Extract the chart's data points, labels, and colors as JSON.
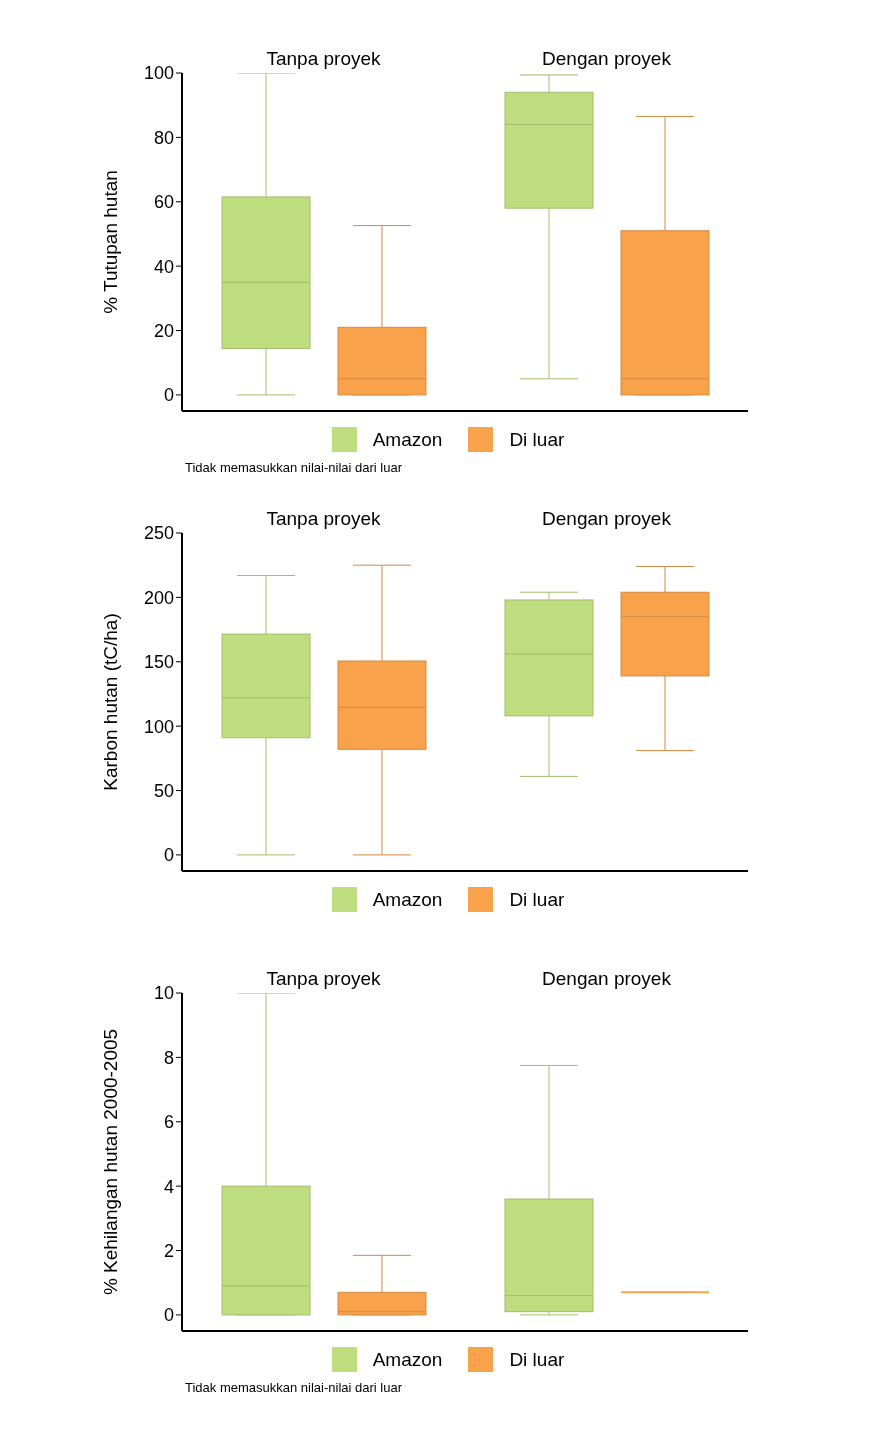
{
  "chart_data": [
    {
      "type": "box",
      "ylabel": "% Tutupan hutan",
      "categories": [
        "Tanpa proyek",
        "Dengan proyek"
      ],
      "ylim": [
        -5,
        100
      ],
      "yticks": [
        0,
        20,
        40,
        60,
        80,
        100
      ],
      "legend": "bottom",
      "annotations": [
        "Tidak memasukkan nilai-nilai dari luar"
      ],
      "series": [
        {
          "name": "Amazon",
          "color": "#bedd7f",
          "boxes": [
            {
              "low": 0,
              "q1": 14.4,
              "median": 35,
              "q3": 61.5,
              "high": 100
            },
            {
              "low": 5,
              "q1": 58,
              "median": 84,
              "q3": 94,
              "high": 99.4
            }
          ]
        },
        {
          "name": "Di luar",
          "color": "#f8a24c",
          "boxes": [
            {
              "low": 0,
              "q1": 0,
              "median": 5,
              "q3": 21,
              "high": 52.6
            },
            {
              "low": 0,
              "q1": 0,
              "median": 5,
              "q3": 51,
              "high": 86.5
            }
          ]
        }
      ]
    },
    {
      "type": "box",
      "ylabel": "Karbon hutan (tC/ha)",
      "categories": [
        "Tanpa proyek",
        "Dengan proyek"
      ],
      "ylim": [
        -12.5,
        250
      ],
      "yticks": [
        0,
        50,
        100,
        150,
        200,
        250
      ],
      "legend": "bottom",
      "series": [
        {
          "name": "Amazon",
          "color": "#bedd7f",
          "boxes": [
            {
              "low": 0,
              "q1": 91,
              "median": 122,
              "q3": 171.5,
              "high": 217
            },
            {
              "low": 61,
              "q1": 108,
              "median": 156,
              "q3": 198,
              "high": 204
            }
          ]
        },
        {
          "name": "Di luar",
          "color": "#f8a24c",
          "boxes": [
            {
              "low": 0,
              "q1": 82,
              "median": 114.6,
              "q3": 150.6,
              "high": 225
            },
            {
              "low": 81,
              "q1": 139,
              "median": 185,
              "q3": 204,
              "high": 224
            }
          ]
        }
      ]
    },
    {
      "type": "box",
      "ylabel": "% Kehilangan hutan 2000-2005",
      "categories": [
        "Tanpa proyek",
        "Dengan proyek"
      ],
      "ylim": [
        -0.5,
        10
      ],
      "yticks": [
        0,
        2,
        4,
        6,
        8,
        10
      ],
      "legend": "bottom",
      "annotations": [
        "Tidak memasukkan nilai-nilai dari luar"
      ],
      "series": [
        {
          "name": "Amazon",
          "color": "#bedd7f",
          "boxes": [
            {
              "low": 0,
              "q1": 0,
              "median": 0.9,
              "q3": 4,
              "high": 10
            },
            {
              "low": 0,
              "q1": 0.1,
              "median": 0.6,
              "q3": 3.6,
              "high": 7.75
            }
          ]
        },
        {
          "name": "Di luar",
          "color": "#f8a24c",
          "boxes": [
            {
              "low": 0,
              "q1": 0,
              "median": 0.1,
              "q3": 0.7,
              "high": 1.85
            },
            {
              "low": 0.7,
              "q1": 0.7,
              "median": 0.7,
              "q3": 0.7,
              "high": 0.7
            }
          ]
        }
      ]
    }
  ]
}
